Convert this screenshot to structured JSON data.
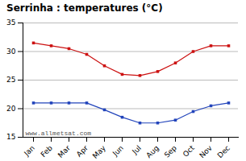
{
  "chart_data": {
    "type": "line",
    "title": "Serrinha : temperatures (°C)",
    "categories": [
      "Jan",
      "Feb",
      "Mar",
      "Apr",
      "May",
      "Jun",
      "Jul",
      "Aug",
      "Sep",
      "Oct",
      "Nov",
      "Dec"
    ],
    "series": [
      {
        "color": "#cc1111",
        "values": [
          31.5,
          31.0,
          30.5,
          29.5,
          27.5,
          26.0,
          25.8,
          26.5,
          28.0,
          30.0,
          31.0,
          31.0
        ]
      },
      {
        "color": "#2244bb",
        "values": [
          21.0,
          21.0,
          21.0,
          21.0,
          19.8,
          18.5,
          17.5,
          17.5,
          18.0,
          19.5,
          20.5,
          21.0
        ]
      }
    ],
    "ylim": [
      15,
      35
    ],
    "yticks": [
      15,
      20,
      25,
      30,
      35
    ],
    "grid": "y",
    "marker": "square",
    "annotations": [
      "www.allmetsat.com"
    ]
  }
}
